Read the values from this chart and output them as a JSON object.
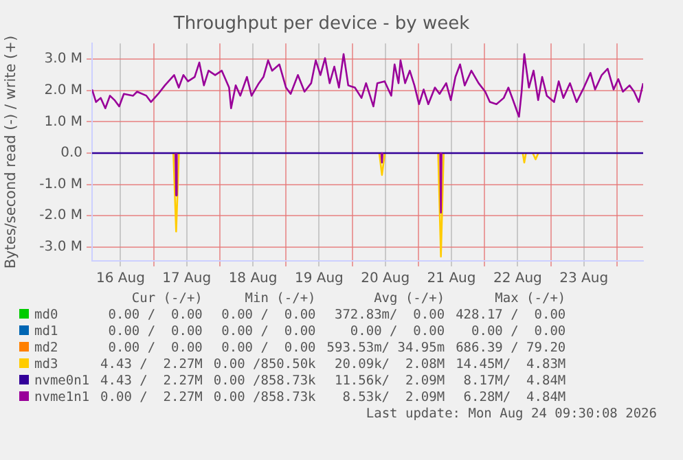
{
  "chart_data": {
    "type": "line",
    "title": "Throughput per device - by week",
    "ylabel": "Bytes/second read (-) / write (+)",
    "xlim": [
      "2026-08-16T01:41",
      "2026-08-24T09:30"
    ],
    "xticks": [
      {
        "value": "2026-08-16T12:00",
        "label": "16 Aug"
      },
      {
        "value": "2026-08-17T00:00",
        "label": null
      },
      {
        "value": "2026-08-17T12:00",
        "label": "17 Aug"
      },
      {
        "value": "2026-08-18T00:00",
        "label": null
      },
      {
        "value": "2026-08-18T12:00",
        "label": "18 Aug"
      },
      {
        "value": "2026-08-19T00:00",
        "label": null
      },
      {
        "value": "2026-08-19T12:00",
        "label": "19 Aug"
      },
      {
        "value": "2026-08-20T00:00",
        "label": null
      },
      {
        "value": "2026-08-20T12:00",
        "label": "20 Aug"
      },
      {
        "value": "2026-08-21T00:00",
        "label": null
      },
      {
        "value": "2026-08-21T12:00",
        "label": "21 Aug"
      },
      {
        "value": "2026-08-22T00:00",
        "label": null
      },
      {
        "value": "2026-08-22T12:00",
        "label": "22 Aug"
      },
      {
        "value": "2026-08-23T00:00",
        "label": null
      },
      {
        "value": "2026-08-23T12:00",
        "label": "23 Aug"
      },
      {
        "value": "2026-08-24T00:00",
        "label": null
      }
    ],
    "ylim": [
      -3.44,
      3.5
    ],
    "yticks": [
      {
        "value": -3,
        "label": "-3.0 M"
      },
      {
        "value": -2,
        "label": "-2.0 M"
      },
      {
        "value": -1,
        "label": "-1.0 M"
      },
      {
        "value": 0,
        "label": "0.0"
      },
      {
        "value": 1,
        "label": "1.0 M"
      },
      {
        "value": 2,
        "label": "2.0 M"
      },
      {
        "value": 3,
        "label": "3.0 M"
      }
    ],
    "grid": true,
    "legend": "bottom",
    "marker": "none",
    "line_style": "solid",
    "series": [
      {
        "name": "md0",
        "color": "#00cc00"
      },
      {
        "name": "md1",
        "color": "#0066b3"
      },
      {
        "name": "md2",
        "color": "#ff8000"
      },
      {
        "name": "md3",
        "color": "#ffcc00",
        "x": [
          "2026-08-17T07:10",
          "2026-08-17T08:10",
          "2026-08-17T09:10",
          "2026-08-18T00:00",
          "2026-08-20T09:50",
          "2026-08-20T10:48",
          "2026-08-20T11:50",
          "2026-08-21T00:00",
          "2026-08-21T07:10",
          "2026-08-21T08:10",
          "2026-08-21T09:10",
          "2026-08-22T00:00",
          "2026-08-22T13:50",
          "2026-08-22T14:24",
          "2026-08-22T15:00",
          "2026-08-22T16:00",
          "2026-08-22T17:30",
          "2026-08-22T18:29",
          "2026-08-22T19:30"
        ],
        "values": [
          0,
          -2.5,
          0,
          null,
          0,
          -0.7,
          0,
          null,
          0,
          -3.3,
          0,
          null,
          0,
          -0.3,
          0,
          null,
          0,
          -0.2,
          0
        ]
      },
      {
        "name": "nvme0n1",
        "color": "#330099",
        "x": [
          "2026-08-16T01:41",
          "2026-08-24T09:30"
        ],
        "values": [
          0,
          0
        ]
      },
      {
        "name": "nvme1n1",
        "color": "#990099",
        "x": [
          "2026-08-16T01:41",
          "2026-08-16T03:07",
          "2026-08-16T04:48",
          "2026-08-16T06:29",
          "2026-08-16T08:10",
          "2026-08-16T09:50",
          "2026-08-16T11:31",
          "2026-08-16T13:12",
          "2026-08-16T16:34",
          "2026-08-16T18:00",
          "2026-08-16T21:22",
          "2026-08-16T23:02",
          "2026-08-17T01:41",
          "2026-08-17T04:05",
          "2026-08-17T07:26",
          "2026-08-17T09:07",
          "2026-08-17T10:48",
          "2026-08-17T12:29",
          "2026-08-17T14:53",
          "2026-08-17T16:34",
          "2026-08-17T18:14",
          "2026-08-17T19:55",
          "2026-08-17T22:19",
          "2026-08-18T00:43",
          "2026-08-18T03:22",
          "2026-08-18T04:05",
          "2026-08-18T05:46",
          "2026-08-18T07:26",
          "2026-08-18T09:50",
          "2026-08-18T11:31",
          "2026-08-18T14:10",
          "2026-08-18T15:50",
          "2026-08-18T17:31",
          "2026-08-18T18:58",
          "2026-08-18T21:36",
          "2026-08-19T00:00",
          "2026-08-19T01:41",
          "2026-08-19T04:19",
          "2026-08-19T06:43",
          "2026-08-19T09:07",
          "2026-08-19T10:48",
          "2026-08-19T12:29",
          "2026-08-19T14:10",
          "2026-08-19T15:50",
          "2026-08-19T17:31",
          "2026-08-19T19:12",
          "2026-08-19T20:53",
          "2026-08-19T22:34",
          "2026-08-20T00:58",
          "2026-08-20T03:22",
          "2026-08-20T05:02",
          "2026-08-20T07:41",
          "2026-08-20T09:07",
          "2026-08-20T11:46",
          "2026-08-20T14:10",
          "2026-08-20T15:22",
          "2026-08-20T16:48",
          "2026-08-20T17:31",
          "2026-08-20T19:12",
          "2026-08-20T20:53",
          "2026-08-20T22:34",
          "2026-08-21T00:14",
          "2026-08-21T01:55",
          "2026-08-21T03:36",
          "2026-08-21T06:00",
          "2026-08-21T07:41",
          "2026-08-21T10:05",
          "2026-08-21T11:46",
          "2026-08-21T13:26",
          "2026-08-21T15:07",
          "2026-08-21T16:48",
          "2026-08-21T19:12",
          "2026-08-21T21:50",
          "2026-08-22T00:14",
          "2026-08-22T01:55",
          "2026-08-22T04:19",
          "2026-08-22T06:58",
          "2026-08-22T08:38",
          "2026-08-22T10:19",
          "2026-08-22T12:29",
          "2026-08-22T13:26",
          "2026-08-22T14:24",
          "2026-08-22T16:05",
          "2026-08-22T17:46",
          "2026-08-22T19:26",
          "2026-08-22T20:53",
          "2026-08-22T22:34",
          "2026-08-23T01:12",
          "2026-08-23T02:53",
          "2026-08-23T04:34",
          "2026-08-23T06:58",
          "2026-08-23T09:22",
          "2026-08-23T12:00",
          "2026-08-23T14:24",
          "2026-08-23T16:05",
          "2026-08-23T18:29",
          "2026-08-23T20:38",
          "2026-08-23T22:48",
          "2026-08-24T00:29",
          "2026-08-24T02:10",
          "2026-08-24T04:34",
          "2026-08-24T06:14",
          "2026-08-24T07:55",
          "2026-08-24T09:30"
        ],
        "values": [
          2.03,
          1.63,
          1.76,
          1.43,
          1.83,
          1.69,
          1.49,
          1.89,
          1.83,
          1.96,
          1.83,
          1.63,
          1.89,
          2.16,
          2.49,
          2.09,
          2.49,
          2.29,
          2.43,
          2.89,
          2.16,
          2.63,
          2.49,
          2.63,
          2.09,
          1.43,
          2.16,
          1.83,
          2.43,
          1.83,
          2.23,
          2.43,
          2.96,
          2.63,
          2.83,
          2.09,
          1.89,
          2.49,
          1.96,
          2.23,
          2.96,
          2.49,
          3.03,
          2.23,
          2.76,
          2.09,
          3.16,
          2.16,
          2.09,
          1.76,
          2.23,
          1.49,
          2.23,
          2.29,
          1.83,
          2.83,
          2.23,
          2.96,
          2.23,
          2.63,
          2.16,
          1.56,
          2.03,
          1.56,
          2.09,
          1.89,
          2.23,
          1.69,
          2.43,
          2.83,
          2.16,
          2.63,
          2.23,
          1.96,
          1.63,
          1.56,
          1.76,
          2.09,
          1.69,
          1.16,
          1.96,
          3.16,
          2.09,
          2.63,
          1.69,
          2.43,
          1.83,
          1.63,
          2.29,
          1.76,
          2.23,
          1.63,
          2.09,
          2.56,
          2.03,
          2.49,
          2.69,
          2.03,
          2.36,
          1.96,
          2.16,
          1.96,
          1.63,
          2.23
        ]
      },
      {
        "color": "#990099",
        "x": [
          "2026-08-17T07:55",
          "2026-08-17T08:10",
          "2026-08-17T08:24",
          "2026-08-18T00:00",
          "2026-08-20T10:35",
          "2026-08-20T10:48",
          "2026-08-20T11:00",
          "2026-08-21T00:00",
          "2026-08-21T07:55",
          "2026-08-21T08:10",
          "2026-08-21T08:24"
        ],
        "values": [
          0,
          -1.35,
          0,
          null,
          0,
          -0.3,
          0,
          null,
          0,
          -1.9,
          0
        ]
      }
    ],
    "annotations": [
      "Cur (-/+)",
      "Min (-/+)",
      "Avg (-/+)",
      "Max (-/+)",
      "0.00 /  0.00",
      "0.00 /  0.00",
      "372.83m/  0.00",
      "428.17 /  0.00",
      "0.00 /  0.00",
      "0.00 /  0.00",
      "0.00 /  0.00",
      "0.00 /  0.00",
      "0.00 /  0.00",
      "0.00 /  0.00",
      "593.53m/ 34.95m",
      "686.39 / 79.20",
      "4.43 /  2.27M",
      "0.00 /850.50k",
      "20.09k/  2.08M",
      "14.45M/  4.83M",
      "4.43 /  2.27M",
      "0.00 /858.73k",
      "11.56k/  2.09M",
      "8.17M/  4.84M",
      "0.00 /  2.27M",
      "0.00 /858.73k",
      "8.53k/  2.09M",
      "6.28M/  4.84M",
      "Last update: Mon Aug 24 09:30:08 2026"
    ]
  }
}
